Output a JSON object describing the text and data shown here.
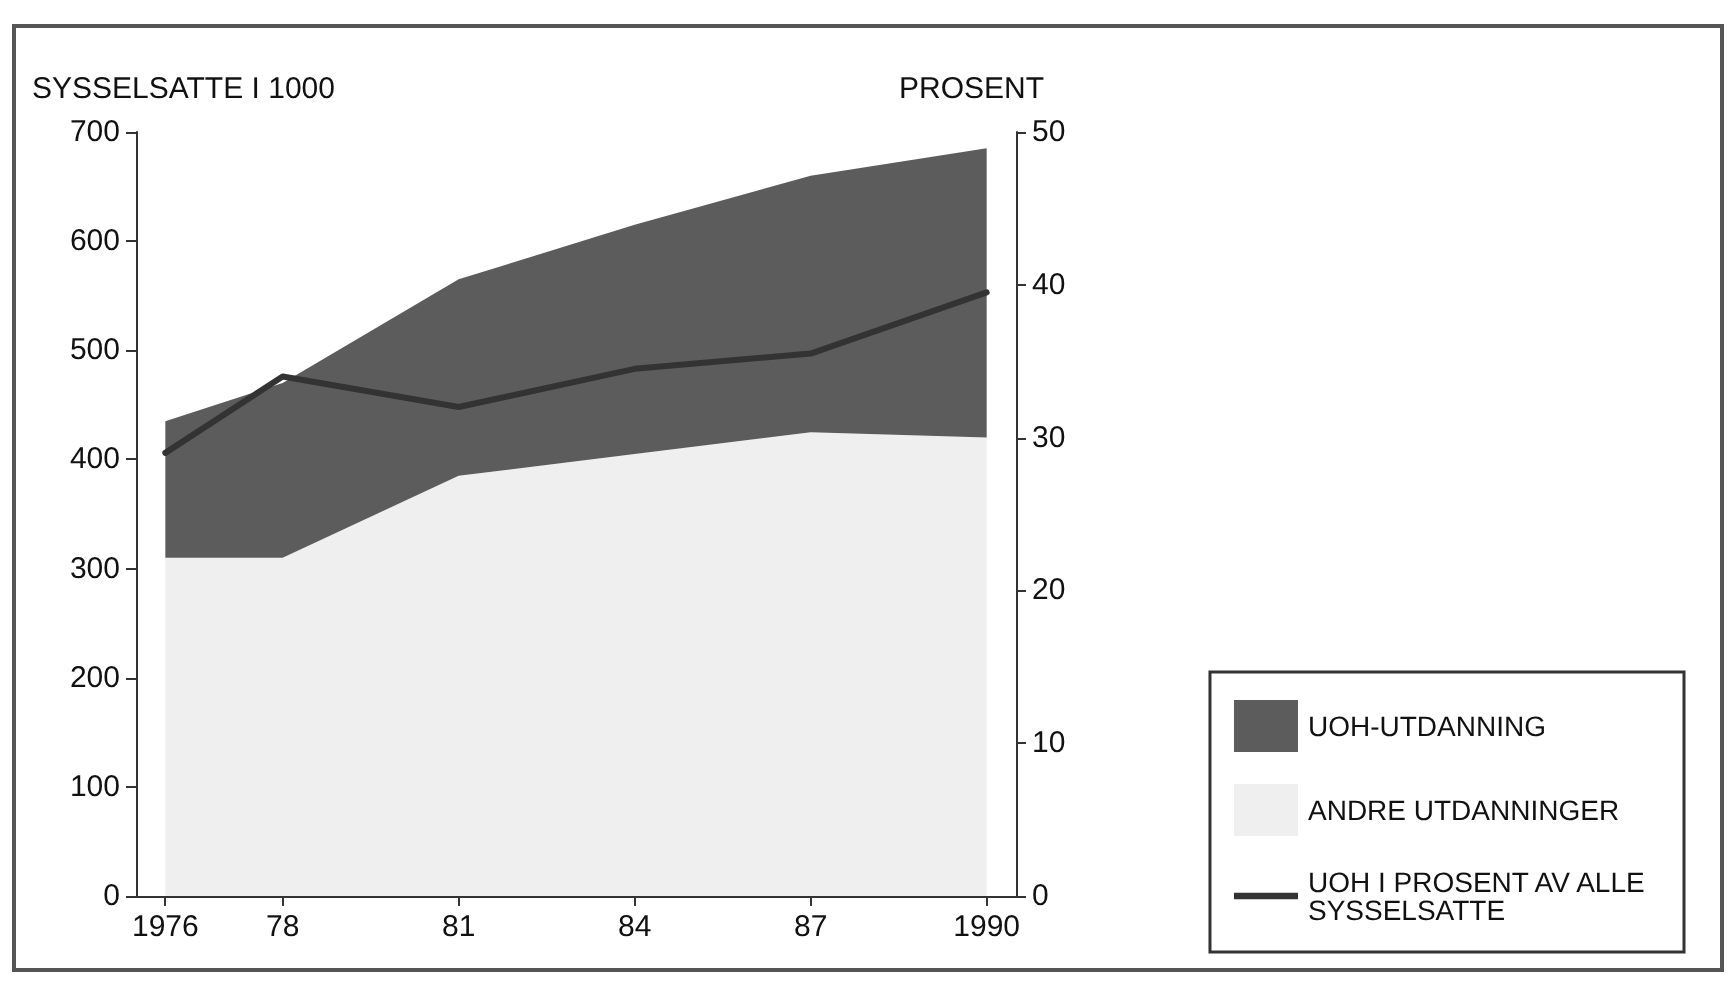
{
  "chart_data": {
    "type": "area",
    "stacked": true,
    "ylabel": "SYSSELSATTE I 1000",
    "y2label": "PROSENT",
    "x": [
      1976,
      1978,
      1981,
      1984,
      1987,
      1990
    ],
    "xlim": [
      1975.5,
      1990.5
    ],
    "xticks": [
      1976,
      {
        "value": 1978,
        "label": "78"
      },
      {
        "value": 1981,
        "label": "81"
      },
      {
        "value": 1984,
        "label": "84"
      },
      {
        "value": 1987,
        "label": "87"
      },
      1990
    ],
    "ylim": [
      0,
      700
    ],
    "yticks": [
      0,
      100,
      200,
      300,
      400,
      500,
      600,
      700
    ],
    "y2lim": [
      0,
      50
    ],
    "y2ticks": [
      0,
      10,
      20,
      30,
      40,
      50
    ],
    "series": [
      {
        "name": "ANDRE UTDANNINGER",
        "color": "#efefef",
        "values": [
          310,
          310,
          385,
          405,
          425,
          420
        ]
      },
      {
        "name": "UOH-UTDANNING",
        "color": "#5c5c5c",
        "values": [
          125,
          160,
          180,
          210,
          235,
          265
        ]
      },
      {
        "name": "UOH I PROSENT AV ALLE SYSSELSATTE",
        "type": "line",
        "axis": "y2",
        "color": "#333333",
        "values": [
          29,
          34,
          32,
          34.5,
          35.5,
          39.5
        ]
      }
    ],
    "grid": false,
    "legend": "bottom right",
    "marker": "none",
    "line_style": "solid"
  }
}
